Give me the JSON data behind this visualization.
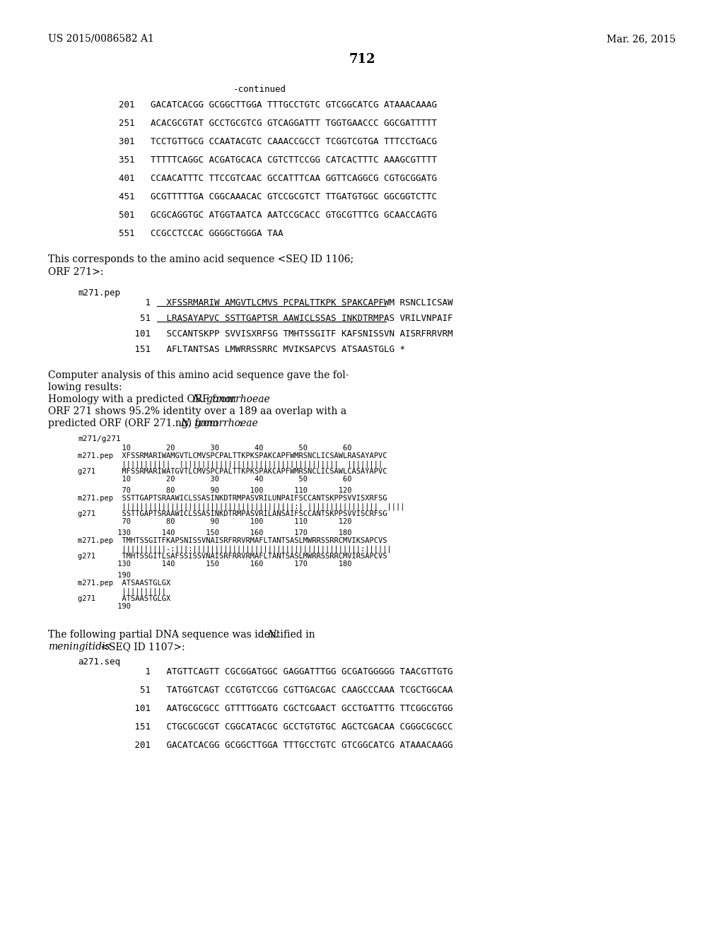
{
  "background_color": "#ffffff",
  "header_left": "US 2015/0086582 A1",
  "header_right": "Mar. 26, 2015",
  "page_number": "712",
  "continued_label": "-continued",
  "dna_seq": [
    "201   GACATCACGG GCGGCTTGGA TTTGCCTGTC GTCGGCATCG ATAAACAAAG",
    "251   ACACGCGTAT GCCTGCGTCG GTCAGGATTT TGGTGAACCC GGCGATTTTT",
    "301   TCCTGTTGCG CCAATACGTC CAAACCGCCT TCGGTCGTGA TTTCCTGACG",
    "351   TTTTTCAGGC ACGATGCACA CGTCTTCCGG CATCACTTTC AAAGCGTTTT",
    "401   CCAACATTTC TTCCGTCAAC GCCATTTCAA GGTTCAGGCG CGTGCGGATG",
    "451   GCGTTTTTGA CGGCAAACAC GTCCGCGTCT TTGATGTGGC GGCGGTCTTC",
    "501   GCGCAGGTGC ATGGTAATCA AATCCGCACC GTGCGTTTCG GCAACCAGTG",
    "551   CCGCCTCCAC GGGGCTGGGA TAA"
  ],
  "pep_label": "m271.pep",
  "pep_lines": [
    [
      1,
      "XFSSRMARIW AMGVTLCMVS PCPALTTKPK SPAKCAPFWM RSNCLICSAW",
      true
    ],
    [
      51,
      "LRASAYAPVC SSTTGAPTSR AAWICLSSAS INKDTRMPAS VRILVNPAIF",
      true
    ],
    [
      101,
      "SCCANTSKPP SVVISXRFSG TMHTSSGITF KAFSNISSVN AISRFRRVRM",
      false
    ],
    [
      151,
      "AFLTANTSAS LMWRRSSRRC MVIKSAPCVS ATSAASTGLG *",
      false
    ]
  ],
  "alignment_label": "m271/g271",
  "aln_blocks": [
    [
      "          10        20        30        40        50        60",
      "m271.pep  XFSSRMARIWAMGVTLCMVSPCPALTTKPKSPAKCAPFWMRSNCLICSAWLRASAYAPVC",
      "          |||||||||||  ||||||||||||||||||||||||||||||||||||  ||||||||",
      "g271      MFSSRMARIWATGVTLCMVSPCPALTTKPKSPAKCAPFWMRSNCLICSAWLCASAYAPVC",
      "          10        20        30        40        50        60"
    ],
    [
      "          70        80        90       100       110       120",
      "m271.pep  SSTTGAPTSRAAWICLSSASINKDTRMPASVRILUNPAIFSCCANTSKPPSVVISXRFSG",
      "          |||||||||||||||||||||||||||||||||||||||:| ||||||||||||||||  ||||",
      "g271      SSTTGAPTSRAAWICLSSASINKDTRMPASVRILANSAIFSCCANTSKPPSVVISCRFSG",
      "          70        80        90       100       110       120"
    ],
    [
      "         130       140       150       160       170       180",
      "m271.pep  TMHTSSGITFKAPSNISSVNAISRFRRVRMAFLTANTSASLMWRRSSRRCMVIKSAPCVS",
      "          ||||||||||-:|||:||||||||||||||||||||||||||||||||||||||:||||||",
      "g271      TMHTSSGITLSAFSSISSVNAISRFRRVRMAFLTANTSASLMWRRSSRRCMVIRSAPCVS",
      "         130       140       150       160       170       180"
    ],
    [
      "         190",
      "m271.pep  ATSAASTGLGX",
      "          ||||||||||",
      "g271      ATSAASTGLGX",
      "         190"
    ]
  ],
  "dna2_label": "a271.seq",
  "dna2_seq": [
    "     1   ATGTTCAGTT CGCGGATGGC GAGGATTTGG GCGATGGGGG TAACGTTGTG",
    "    51   TATGGTCAGT CCGTGTCCGG CGTTGACGAC CAAGCCCAAA TCGCTGGCAA",
    "   101   AATGCGCGCC GTTTTGGATG CGCTCGAACT GCCTGATTTG TTCGGCGTGG",
    "   151   CTGCGCGCGT CGGCATACGC GCCTGTGTGC AGCTCGACAA CGGGCGCGCC",
    "   201   GACATCACGG GCGGCTTGGA TTTGCCTGTC GTCGGCATCG ATAAACAAGG"
  ]
}
